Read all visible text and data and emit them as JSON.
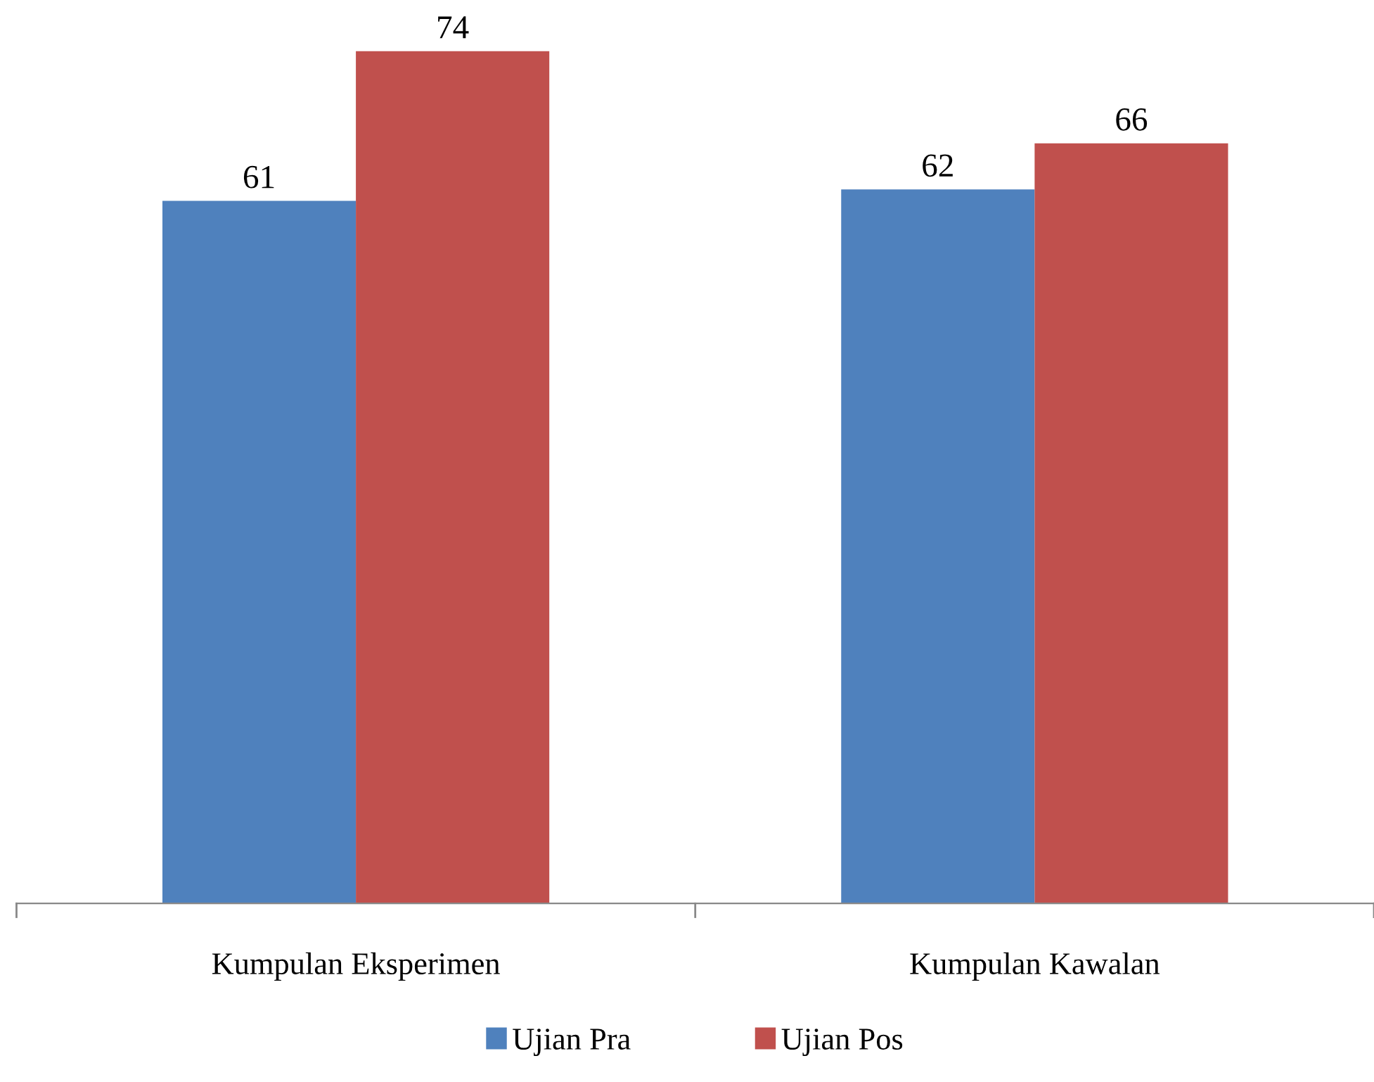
{
  "chart_data": {
    "type": "bar",
    "categories": [
      "Kumpulan Eksperimen",
      "Kumpulan Kawalan"
    ],
    "series": [
      {
        "name": "Ujian Pra",
        "color": "#4f81bd",
        "values": [
          61,
          62
        ]
      },
      {
        "name": "Ujian Pos",
        "color": "#c0504d",
        "values": [
          74,
          66
        ]
      }
    ],
    "data_labels": true,
    "legend": "bottom",
    "grid": false,
    "tick_labels": "x"
  }
}
